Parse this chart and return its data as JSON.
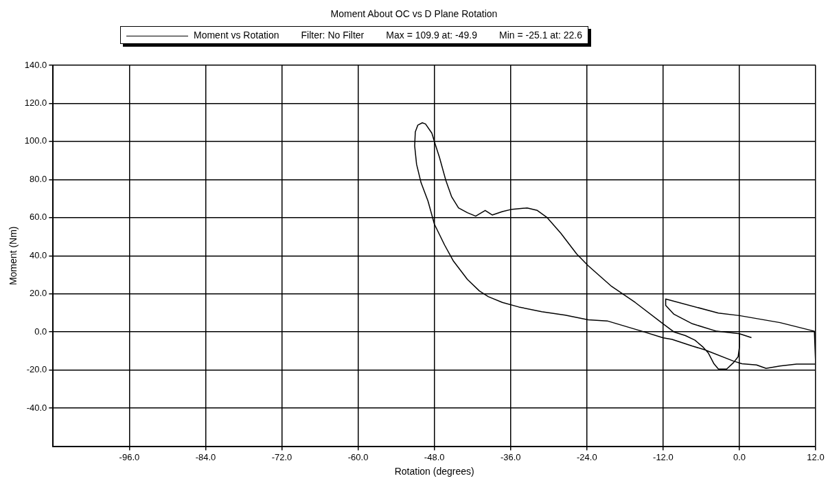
{
  "chart_data": {
    "type": "line",
    "title": "Moment About OC vs D Plane Rotation",
    "xlabel": "Rotation (degrees)",
    "ylabel": "Moment (Nm)",
    "annotations": [
      "Filter: No Filter",
      "Max = 109.9 at: -49.9",
      "Min = -25.1 at: 22.6"
    ],
    "xlim": [
      -108,
      12
    ],
    "ylim": [
      -60,
      140
    ],
    "xticks": [
      {
        "value": -96,
        "label": "-96.0"
      },
      {
        "value": -84,
        "label": "-84.0"
      },
      {
        "value": -72,
        "label": "-72.0"
      },
      {
        "value": -60,
        "label": "-60.0"
      },
      {
        "value": -48,
        "label": "-48.0"
      },
      {
        "value": -36,
        "label": "-36.0"
      },
      {
        "value": -24,
        "label": "-24.0"
      },
      {
        "value": -12,
        "label": "-12.0"
      },
      {
        "value": 0,
        "label": "0.0"
      },
      {
        "value": 12,
        "label": "12.0"
      }
    ],
    "yticks": [
      {
        "value": -40,
        "label": "-40.0"
      },
      {
        "value": -20,
        "label": "-20.0"
      },
      {
        "value": 0,
        "label": "0.0"
      },
      {
        "value": 20,
        "label": "20.0"
      },
      {
        "value": 40,
        "label": "40.0"
      },
      {
        "value": 60,
        "label": "60.0"
      },
      {
        "value": 80,
        "label": "80.0"
      },
      {
        "value": 100,
        "label": "100.0"
      },
      {
        "value": 120,
        "label": "120.0"
      },
      {
        "value": 140,
        "label": "140.0"
      }
    ],
    "grid": true,
    "legend": "top",
    "marker": "none",
    "line_style": "solid",
    "series": [
      {
        "name": "Moment vs Rotation",
        "color": "#000000",
        "x": [
          1.9,
          0,
          -3.6,
          -7.4,
          -10.3,
          -11.6,
          -11.6,
          -3.3,
          0,
          6.4,
          11.8,
          12,
          9,
          6.4,
          4.2,
          2.7,
          0.4,
          -1,
          -5.5,
          -7.4,
          -10.6,
          -12,
          -15.35,
          -20.8,
          -23.8,
          -27.4,
          -31.1,
          -34.7,
          -37.3,
          -39.5,
          -40.9,
          -42.8,
          -45,
          -46.4,
          -48,
          -49,
          -50.1,
          -50.8,
          -51.1,
          -51,
          -50.6,
          -49.9,
          -49.4,
          -48.4,
          -47.9,
          -47.2,
          -46.2,
          -45.3,
          -44.2,
          -42.8,
          -41.5,
          -40,
          -38.9,
          -37.3,
          -35.8,
          -33.4,
          -31.8,
          -30.3,
          -28.1,
          -25.6,
          -23.8,
          -20.1,
          -16.4,
          -11.9,
          -10.3,
          -8.5,
          -7,
          -5.7,
          -4.9,
          -4,
          -3.3,
          -2,
          -0.9,
          -0.2,
          0,
          0
        ],
        "values": [
          -3,
          -0.9,
          0.4,
          4.3,
          9.3,
          14,
          17.3,
          9.9,
          8.6,
          4.9,
          0.4,
          -16.9,
          -16.9,
          -17.9,
          -19.1,
          -17.3,
          -16.7,
          -15.2,
          -9.3,
          -7.4,
          -3.9,
          -3.1,
          0.4,
          5.8,
          6.4,
          8.8,
          10.6,
          13.1,
          15.5,
          18.5,
          21.5,
          27.6,
          37.2,
          45.7,
          56.6,
          68.7,
          78.4,
          88,
          97.7,
          105,
          108.6,
          109.8,
          109.2,
          104.4,
          98.9,
          91.7,
          79.6,
          71.1,
          65.1,
          62.6,
          60.8,
          63.8,
          61.4,
          63.2,
          64.4,
          65.1,
          63.8,
          60.2,
          51.8,
          40.9,
          34.8,
          23.9,
          15.5,
          4,
          0,
          -1.9,
          -4.3,
          -8,
          -11,
          -16.7,
          -19.5,
          -19.5,
          -16,
          -13,
          -8,
          -1
        ]
      }
    ]
  }
}
